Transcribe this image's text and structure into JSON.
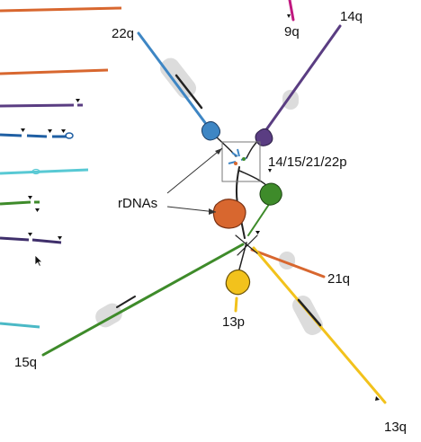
{
  "labels": {
    "arm_22q": "22q",
    "arm_9q": "9q",
    "arm_14q": "14q",
    "group_acrocentric": "14/15/21/22p",
    "rdnas": "rDNAs",
    "arm_21q": "21q",
    "arm_13p": "13p",
    "arm_15q": "15q",
    "arm_13q": "13q"
  },
  "colors": {
    "orange": "#d8672f",
    "purple": "#5a3d82",
    "blue": "#3e86c4",
    "blue_dark": "#1f5fa3",
    "cyan": "#58c9d4",
    "green": "#3e8b2a",
    "navy": "#3f2f6b",
    "teal": "#4bb9c6",
    "yellow": "#f2c21c",
    "magenta": "#c0187f",
    "gray_hub": "#d0d0d0",
    "black": "#111111"
  },
  "icons": [
    "arrow-cursor-icon"
  ]
}
